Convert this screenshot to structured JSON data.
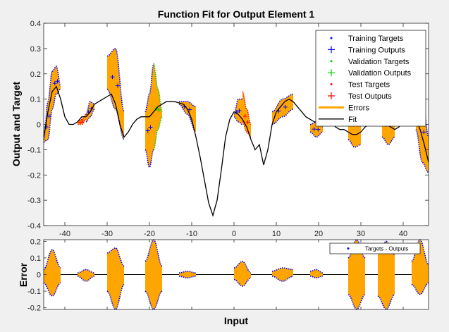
{
  "chart_data": [
    {
      "type": "line",
      "title": "Function Fit for Output Element 1",
      "xlabel": "",
      "ylabel": "Output and Target",
      "xlim": [
        -45,
        46
      ],
      "ylim": [
        -0.4,
        0.4
      ],
      "xticks": [
        -40,
        -30,
        -20,
        -10,
        0,
        10,
        20,
        30,
        40
      ],
      "yticks": [
        -0.4,
        -0.3,
        -0.2,
        -0.1,
        0,
        0.1,
        0.2,
        0.3,
        0.4
      ],
      "xtick_labels": [
        "-40",
        "-30",
        "-20",
        "-10",
        "0",
        "10",
        "20",
        "30",
        "40"
      ],
      "ytick_labels": [
        "-0.4",
        "-0.3",
        "-0.2",
        "-0.1",
        "0",
        "0.1",
        "0.2",
        "0.3",
        "0.4"
      ],
      "grid": false,
      "legend_position": "top-right",
      "legend": [
        {
          "label": "Training Targets",
          "color": "#0000ff",
          "marker": "dot"
        },
        {
          "label": "Training Outputs",
          "color": "#0000ff",
          "marker": "plus"
        },
        {
          "label": "Validation Targets",
          "color": "#00cc00",
          "marker": "dot"
        },
        {
          "label": "Validation Outputs",
          "color": "#00cc00",
          "marker": "plus"
        },
        {
          "label": "Test Targets",
          "color": "#ff0000",
          "marker": "dot"
        },
        {
          "label": "Test Outputs",
          "color": "#ff0000",
          "marker": "plus"
        },
        {
          "label": "Errors",
          "color": "#ffa500",
          "marker": "line"
        },
        {
          "label": "Fit",
          "color": "#000000",
          "marker": "line"
        }
      ],
      "fit": {
        "x": [
          -45,
          -44,
          -43,
          -42,
          -41,
          -40,
          -39,
          -38,
          -37,
          -36,
          -35,
          -34,
          -33,
          -32,
          -31,
          -30,
          -29,
          -28,
          -27,
          -26,
          -25,
          -24,
          -23,
          -22,
          -21,
          -20,
          -19,
          -18,
          -17,
          -16,
          -15,
          -14,
          -13,
          -12,
          -11,
          -10,
          -9,
          -8,
          -7,
          -6,
          -5,
          -4,
          -3,
          -2,
          -1,
          0,
          1,
          2,
          3,
          4,
          5,
          6,
          7,
          8,
          9,
          10,
          11,
          12,
          13,
          14,
          15,
          16,
          17,
          18,
          19,
          20,
          21,
          22,
          23,
          24,
          25,
          26,
          27,
          28,
          29,
          30,
          31,
          32,
          33,
          34,
          35,
          36,
          37,
          38,
          39,
          40,
          41,
          42,
          43,
          44,
          45,
          46
        ],
        "y": [
          -0.05,
          0.05,
          0.13,
          0.15,
          0.1,
          0.03,
          0.0,
          0.0,
          0.01,
          0.03,
          0.03,
          0.05,
          0.08,
          0.09,
          0.1,
          0.11,
          0.12,
          0.08,
          0.0,
          -0.05,
          -0.03,
          0.0,
          0.02,
          0.03,
          0.03,
          0.03,
          0.05,
          0.07,
          0.08,
          0.09,
          0.09,
          0.09,
          0.085,
          0.08,
          0.06,
          0.02,
          -0.05,
          -0.13,
          -0.22,
          -0.31,
          -0.36,
          -0.3,
          -0.18,
          -0.05,
          0.02,
          0.05,
          0.04,
          0.02,
          -0.01,
          -0.06,
          -0.1,
          -0.08,
          -0.16,
          -0.1,
          0.0,
          0.05,
          0.07,
          0.09,
          0.1,
          0.09,
          0.07,
          0.05,
          0.03,
          0.02,
          0.01,
          0.01,
          0.02,
          0.02,
          0.01,
          -0.01,
          -0.02,
          -0.02,
          -0.03,
          -0.04,
          -0.04,
          -0.03,
          -0.01,
          0.0,
          0.02,
          0.03,
          0.02,
          0.0,
          -0.01,
          -0.02,
          -0.01,
          0.01,
          0.02,
          0.03,
          0.02,
          -0.02,
          -0.08,
          -0.15
        ]
      },
      "clusters": [
        {
          "x0": -45,
          "x1": -43,
          "top": [
            -0.06,
            0.09,
            0.21
          ],
          "bottom": [
            -0.07,
            -0.06,
            0.06
          ],
          "set": "training"
        },
        {
          "x0": -43,
          "x1": -41,
          "top": [
            0.21,
            0.23,
            0.15
          ],
          "bottom": [
            0.06,
            0.12,
            0.14
          ],
          "set": "training"
        },
        {
          "x0": -37,
          "x1": -35,
          "top": [
            0.01,
            0.02,
            0.04
          ],
          "bottom": [
            0.0,
            0.0,
            0.02
          ],
          "set": "test"
        },
        {
          "x0": -35,
          "x1": -33,
          "top": [
            0.04,
            0.09,
            0.08
          ],
          "bottom": [
            0.01,
            0.03,
            0.06
          ],
          "set": "training"
        },
        {
          "x0": -30,
          "x1": -26,
          "top": [
            0.27,
            0.3,
            0.05
          ],
          "bottom": [
            0.14,
            0.06,
            -0.06
          ],
          "set": "training"
        },
        {
          "x0": -21,
          "x1": -19,
          "top": [
            0.05,
            0.12,
            0.24
          ],
          "bottom": [
            -0.1,
            -0.17,
            -0.1
          ],
          "set": "training"
        },
        {
          "x0": -19,
          "x1": -17,
          "top": [
            0.24,
            0.14,
            0.05
          ],
          "bottom": [
            -0.1,
            -0.02,
            0.03
          ],
          "set": "validation"
        },
        {
          "x0": -13,
          "x1": -9,
          "top": [
            0.09,
            0.09,
            0.07
          ],
          "bottom": [
            0.08,
            0.04,
            -0.03
          ],
          "set": "training"
        },
        {
          "x0": 0,
          "x1": 2,
          "top": [
            0.04,
            0.1,
            0.1
          ],
          "bottom": [
            0.03,
            0.01,
            0.0
          ],
          "set": "training"
        },
        {
          "x0": 2,
          "x1": 4,
          "top": [
            0.13,
            0.06,
            0.0
          ],
          "bottom": [
            0.01,
            -0.03,
            -0.05
          ],
          "set": "test"
        },
        {
          "x0": 9,
          "x1": 14,
          "top": [
            0.05,
            0.1,
            0.12
          ],
          "bottom": [
            0.0,
            0.03,
            0.06
          ],
          "set": "training"
        },
        {
          "x0": 18,
          "x1": 21,
          "top": [
            0.0,
            0.01,
            -0.01
          ],
          "bottom": [
            -0.03,
            -0.05,
            -0.03
          ],
          "set": "training"
        },
        {
          "x0": 27,
          "x1": 30,
          "top": [
            0.05,
            0.13,
            0.02
          ],
          "bottom": [
            -0.06,
            -0.09,
            -0.08
          ],
          "set": "training"
        },
        {
          "x0": 35,
          "x1": 38,
          "top": [
            0.0,
            0.1,
            0.05
          ],
          "bottom": [
            -0.05,
            -0.08,
            -0.05
          ],
          "set": "training"
        },
        {
          "x0": 43,
          "x1": 46,
          "top": [
            0.22,
            0.12,
            -0.05
          ],
          "bottom": [
            -0.02,
            -0.15,
            -0.19
          ],
          "set": "training"
        }
      ]
    },
    {
      "type": "area",
      "title": "",
      "xlabel": "Input",
      "ylabel": "Error",
      "xlim": [
        -45,
        46
      ],
      "ylim": [
        -0.21,
        0.21
      ],
      "yticks": [
        -0.2,
        -0.1,
        0,
        0.1,
        0.2
      ],
      "ytick_labels": [
        "-0.2",
        "-0.1",
        "0",
        "0.1",
        "0.2"
      ],
      "grid": false,
      "legend_position": "top-right",
      "legend": [
        {
          "label": "Targets - Outputs",
          "color": "#0000ff",
          "marker": "dot"
        }
      ],
      "errors": [
        {
          "x0": -45,
          "x1": -41,
          "top": [
            0.03,
            0.15,
            0.04
          ],
          "bottom": [
            -0.05,
            -0.13,
            -0.05
          ]
        },
        {
          "x0": -37,
          "x1": -33,
          "top": [
            0.01,
            0.03,
            0.01
          ],
          "bottom": [
            -0.01,
            -0.04,
            -0.01
          ]
        },
        {
          "x0": -30,
          "x1": -26,
          "top": [
            0.13,
            0.16,
            0.05
          ],
          "bottom": [
            -0.1,
            -0.21,
            -0.06
          ]
        },
        {
          "x0": -21,
          "x1": -17,
          "top": [
            0.08,
            0.21,
            0.05
          ],
          "bottom": [
            -0.1,
            -0.21,
            -0.1
          ]
        },
        {
          "x0": -13,
          "x1": -9,
          "top": [
            0.01,
            0.02,
            0.01
          ],
          "bottom": [
            -0.01,
            -0.02,
            -0.01
          ]
        },
        {
          "x0": 0,
          "x1": 4,
          "top": [
            0.04,
            0.08,
            0.01
          ],
          "bottom": [
            -0.03,
            -0.07,
            -0.02
          ]
        },
        {
          "x0": 9,
          "x1": 14,
          "top": [
            0.02,
            0.04,
            0.03
          ],
          "bottom": [
            -0.01,
            -0.04,
            -0.01
          ]
        },
        {
          "x0": 18,
          "x1": 21,
          "top": [
            0.02,
            0.03,
            0.01
          ],
          "bottom": [
            -0.01,
            -0.02,
            -0.01
          ]
        },
        {
          "x0": 27,
          "x1": 31,
          "top": [
            0.1,
            0.21,
            0.1
          ],
          "bottom": [
            -0.12,
            -0.21,
            -0.12
          ]
        },
        {
          "x0": 34,
          "x1": 38,
          "top": [
            0.13,
            0.2,
            0.12
          ],
          "bottom": [
            -0.13,
            -0.21,
            -0.12
          ]
        },
        {
          "x0": 42,
          "x1": 46,
          "top": [
            0.08,
            0.21,
            0.06
          ],
          "bottom": [
            -0.06,
            -0.12,
            -0.05
          ]
        }
      ]
    }
  ]
}
